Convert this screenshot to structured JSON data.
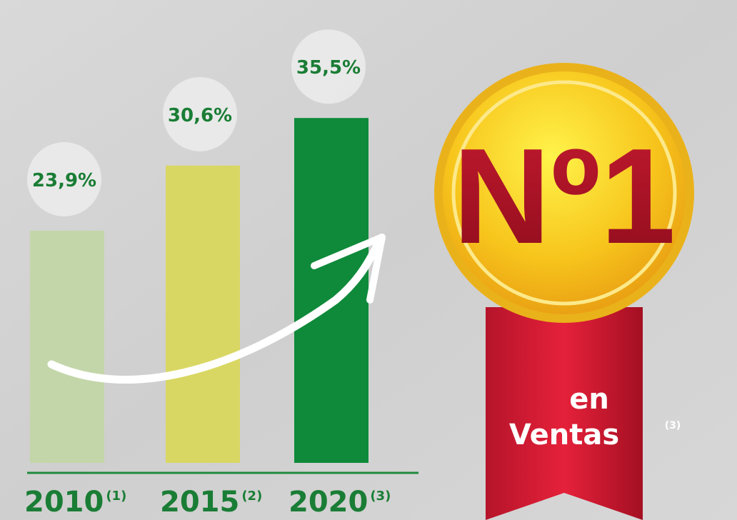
{
  "chart_data": {
    "type": "bar",
    "categories": [
      "2010",
      "2015",
      "2020"
    ],
    "category_notes": [
      "(1)",
      "(2)",
      "(3)"
    ],
    "values": [
      23.9,
      30.6,
      35.5
    ],
    "value_labels": [
      "23,9%",
      "30,6%",
      "35,5%"
    ],
    "colors": [
      "#c3d6a9",
      "#d9d763",
      "#0e8a3a"
    ]
  },
  "badge": {
    "title": "Nº1",
    "text_lines": [
      "en",
      "Ventas"
    ],
    "note": "(3)"
  }
}
